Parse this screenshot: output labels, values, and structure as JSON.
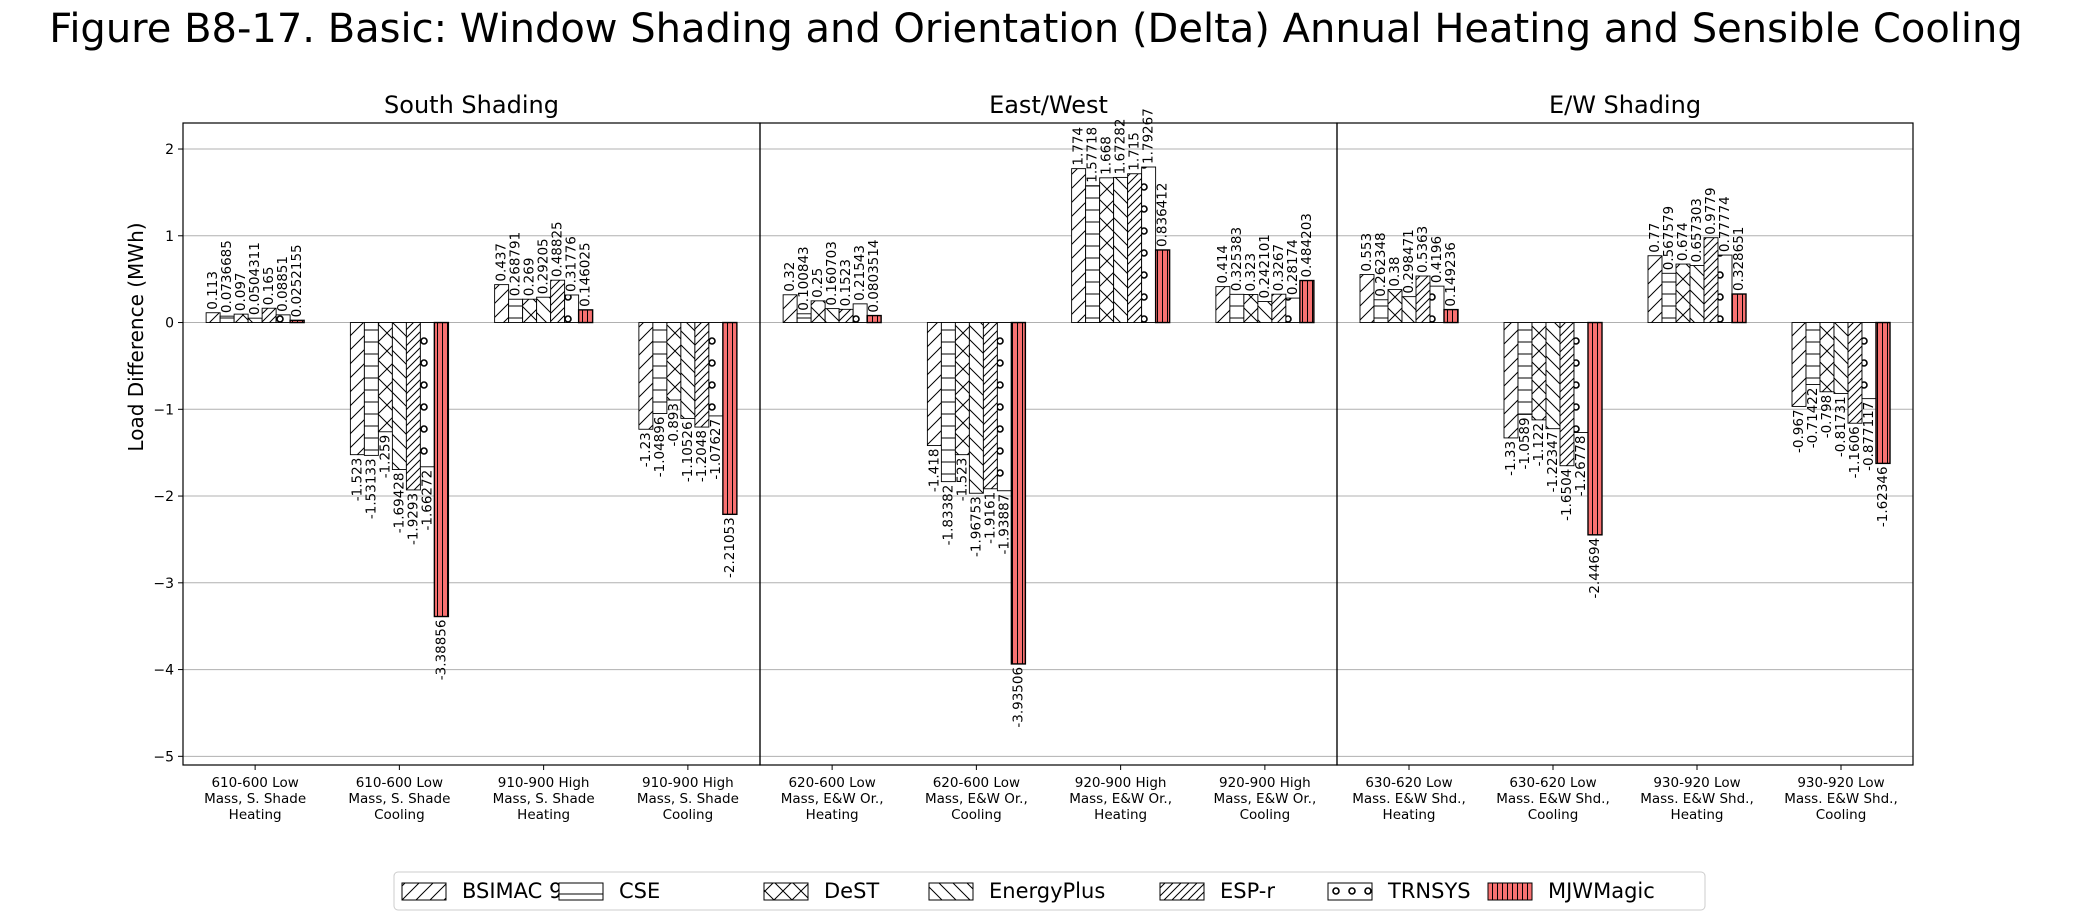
{
  "figure": {
    "title": "Figure B8-17. Basic: Window Shading and Orientation (Delta) Annual Heating and Sensible Cooling"
  },
  "colors": {
    "bar_fill": "#ffffff",
    "bar_edge": "#000000",
    "mjwmagic_fill": "#f87171",
    "grid": "#b0b0b0"
  },
  "chart_data": {
    "type": "bar",
    "ylabel": "Load Difference (MWh)",
    "ylim": [
      -5.1,
      2.3
    ],
    "yticks": [
      2,
      1,
      0,
      -1,
      -2,
      -3,
      -4,
      -5
    ],
    "ytick_labels": [
      "2",
      "1",
      "0",
      "−1",
      "−2",
      "−3",
      "−4",
      "−5"
    ],
    "grid": "horizontal",
    "legend_position": "bottom-center",
    "series": [
      {
        "name": "BSIMAC 9",
        "hatch": "diag-fwd"
      },
      {
        "name": "CSE",
        "hatch": "horizontal"
      },
      {
        "name": "DeST",
        "hatch": "cross-x"
      },
      {
        "name": "EnergyPlus",
        "hatch": "diag-back"
      },
      {
        "name": "ESP-r",
        "hatch": "diag-fwd-dense"
      },
      {
        "name": "TRNSYS",
        "hatch": "circles"
      },
      {
        "name": "MJWMagic",
        "hatch": "vertical"
      }
    ],
    "panels": [
      {
        "title": "South Shading",
        "groups": [
          {
            "label": [
              "610-600 Low",
              "Mass, S. Shade",
              "Heating"
            ],
            "values": [
              0.113,
              0.0736685,
              0.097,
              0.0504311,
              0.165,
              0.08851,
              0.0252155
            ],
            "value_labels": [
              "0.113",
              "0.0736685",
              "0.097",
              "0.0504311",
              "0.165",
              "0.08851",
              "0.0252155"
            ]
          },
          {
            "label": [
              "610-600 Low",
              "Mass, S. Shade",
              "Cooling"
            ],
            "values": [
              -1.523,
              -1.53133,
              -1.259,
              -1.69428,
              -1.9293,
              -1.66272,
              -3.38856
            ],
            "value_labels": [
              "-1.523",
              "-1.53133",
              "-1.259",
              "-1.69428",
              "-1.9293",
              "-1.66272",
              "-3.38856"
            ]
          },
          {
            "label": [
              "910-900 High",
              "Mass, S. Shade",
              "Heating"
            ],
            "values": [
              0.437,
              0.268791,
              0.269,
              0.29205,
              0.48825,
              0.31776,
              0.146025
            ],
            "value_labels": [
              "0.437",
              "0.268791",
              "0.269",
              "0.29205",
              "0.48825",
              "0.31776",
              "0.146025"
            ]
          },
          {
            "label": [
              "910-900 High",
              "Mass, S. Shade",
              "Cooling"
            ],
            "values": [
              -1.23,
              -1.04896,
              -0.893,
              -1.10526,
              -1.2048,
              -1.07627,
              -2.21053
            ],
            "value_labels": [
              "-1.23",
              "-1.04896",
              "-0.893",
              "-1.10526",
              "-1.2048",
              "-1.07627",
              "-2.21053"
            ]
          }
        ]
      },
      {
        "title": "East/West",
        "groups": [
          {
            "label": [
              "620-600 Low",
              "Mass, E&W Or.,",
              "Heating"
            ],
            "values": [
              0.32,
              0.100843,
              0.25,
              0.160703,
              0.1523,
              0.21543,
              0.0803514
            ],
            "value_labels": [
              "0.32",
              "0.100843",
              "0.25",
              "0.160703",
              "0.1523",
              "0.21543",
              "0.0803514"
            ]
          },
          {
            "label": [
              "620-600 Low",
              "Mass, E&W Or.,",
              "Cooling"
            ],
            "values": [
              -1.418,
              -1.83382,
              -1.523,
              -1.96753,
              -1.9161,
              -1.93887,
              -3.93506
            ],
            "value_labels": [
              "-1.418",
              "-1.83382",
              "-1.523",
              "-1.96753",
              "-1.9161",
              "-1.93887",
              "-3.93506"
            ]
          },
          {
            "label": [
              "920-900 High",
              "Mass, E&W Or.,",
              "Heating"
            ],
            "values": [
              1.774,
              1.57718,
              1.668,
              1.67282,
              1.715,
              1.79267,
              0.836412
            ],
            "value_labels": [
              "1.774",
              "1.57718",
              "1.668",
              "1.67282",
              "1.715",
              "1.79267",
              "0.836412"
            ]
          },
          {
            "label": [
              "920-900 High",
              "Mass, E&W Or.,",
              "Cooling"
            ],
            "values": [
              0.414,
              0.325383,
              0.323,
              0.242101,
              0.3267,
              0.28174,
              0.484203
            ],
            "value_labels": [
              "0.414",
              "0.325383",
              "0.323",
              "0.242101",
              "0.3267",
              "0.28174",
              "0.484203"
            ]
          }
        ]
      },
      {
        "title": "E/W Shading",
        "groups": [
          {
            "label": [
              "630-620 Low",
              "Mass. E&W Shd.,",
              "Heating"
            ],
            "values": [
              0.553,
              0.262348,
              0.38,
              0.298471,
              0.5363,
              0.4196,
              0.149236
            ],
            "value_labels": [
              "0.553",
              "0.262348",
              "0.38",
              "0.298471",
              "0.5363",
              "0.4196",
              "0.149236"
            ]
          },
          {
            "label": [
              "630-620 Low",
              "Mass. E&W Shd.,",
              "Cooling"
            ],
            "values": [
              -1.33,
              -1.0589,
              -1.122,
              -1.22347,
              -1.6504,
              -1.26778,
              -2.44694
            ],
            "value_labels": [
              "-1.33",
              "-1.0589",
              "-1.122",
              "-1.22347",
              "-1.6504",
              "-1.26778",
              "-2.44694"
            ]
          },
          {
            "label": [
              "930-920 Low",
              "Mass. E&W Shd.,",
              "Heating"
            ],
            "values": [
              0.77,
              0.567579,
              0.674,
              0.657303,
              0.9779,
              0.77774,
              0.328651
            ],
            "value_labels": [
              "0.77",
              "0.567579",
              "0.674",
              "0.657303",
              "0.9779",
              "0.77774",
              "0.328651"
            ]
          },
          {
            "label": [
              "930-920 Low",
              "Mass. E&W Shd.,",
              "Cooling"
            ],
            "values": [
              -0.967,
              -0.71422,
              -0.798,
              -0.81731,
              -1.1606,
              -0.877117,
              -1.62346
            ],
            "value_labels": [
              "-0.967",
              "-0.71422",
              "-0.798",
              "-0.81731",
              "-1.1606",
              "-0.877117",
              "-1.62346"
            ]
          }
        ]
      }
    ]
  }
}
